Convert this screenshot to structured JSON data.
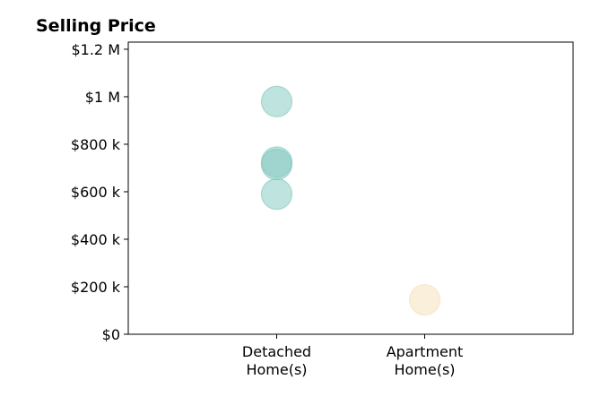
{
  "chart_data": {
    "type": "scatter",
    "title": "Selling Price",
    "xlabel": "",
    "ylabel": "",
    "categories": [
      "Detached\nHome(s)",
      "Apartment\nHome(s)"
    ],
    "ylim": [
      0,
      1230000
    ],
    "yticks": [
      {
        "value": 0,
        "label": "$0"
      },
      {
        "value": 200000,
        "label": "$200 k"
      },
      {
        "value": 400000,
        "label": "$400 k"
      },
      {
        "value": 600000,
        "label": "$600 k"
      },
      {
        "value": 800000,
        "label": "$800 k"
      },
      {
        "value": 1000000,
        "label": "$1 M"
      },
      {
        "value": 1200000,
        "label": "$1.2 M"
      }
    ],
    "grid": false,
    "series": [
      {
        "category": "Detached\nHome(s)",
        "color": "#7fc7bd",
        "values": [
          980000,
          725000,
          715000,
          590000
        ]
      },
      {
        "category": "Apartment\nHome(s)",
        "color": "#f5dfb5",
        "values": [
          145000
        ]
      }
    ]
  }
}
